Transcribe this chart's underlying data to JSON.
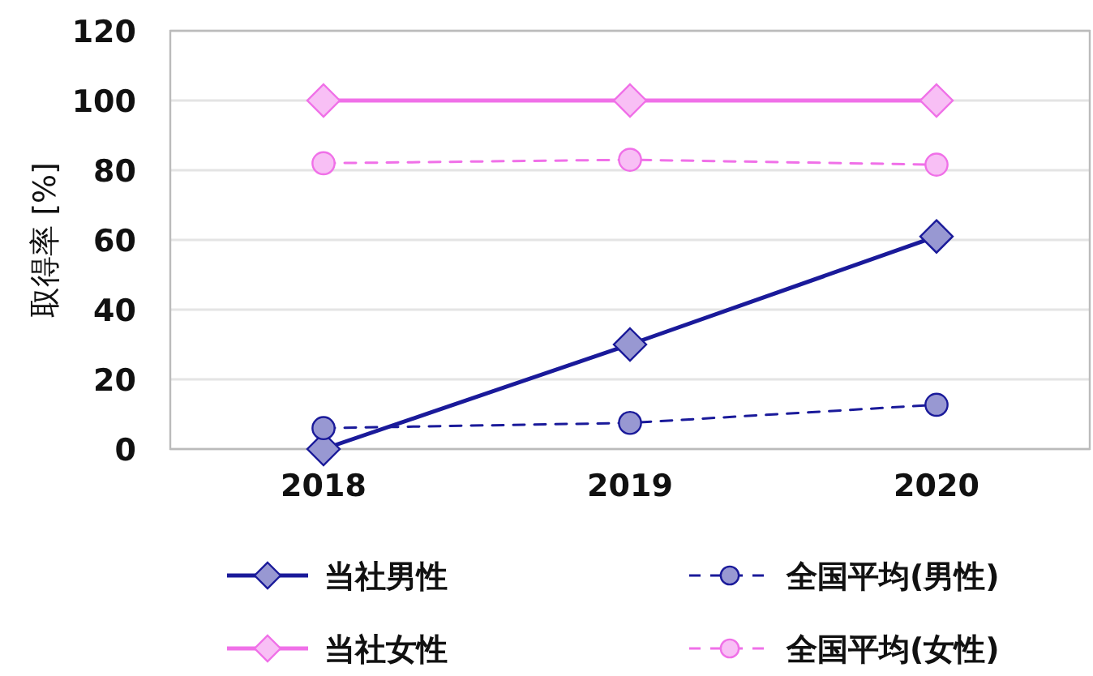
{
  "chart_data": {
    "type": "line",
    "ylabel": "取得率 [%]",
    "categories": [
      "2018",
      "2019",
      "2020"
    ],
    "ylim": [
      0,
      120
    ],
    "yticks": [
      0,
      20,
      40,
      60,
      80,
      100,
      120
    ],
    "grid": "y",
    "legend": "bottom",
    "series": [
      {
        "name": "当社男性",
        "color": "#1a1a9a",
        "marker": "diamond",
        "line_style": "solid",
        "values": [
          0,
          30,
          61
        ]
      },
      {
        "name": "全国平均(男性)",
        "color": "#1a1a9a",
        "marker": "circle",
        "line_style": "dashed",
        "values": [
          6,
          7.5,
          12.7
        ]
      },
      {
        "name": "当社女性",
        "color": "#f070e8",
        "marker": "diamond",
        "line_style": "solid",
        "values": [
          100,
          100,
          100
        ]
      },
      {
        "name": "全国平均(女性)",
        "color": "#f070e8",
        "marker": "circle",
        "line_style": "dashed",
        "values": [
          82,
          83,
          81.6
        ]
      }
    ]
  }
}
